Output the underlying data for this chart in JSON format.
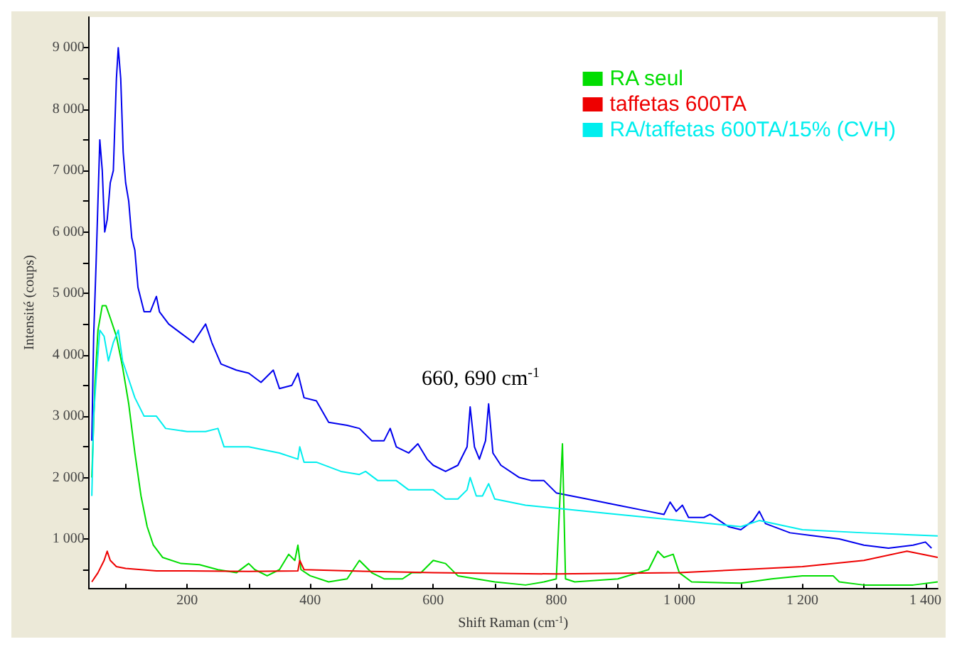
{
  "chart_data": {
    "type": "line",
    "xlabel": "Shift Raman (cm$^{-1}$)",
    "ylabel": "Intensité (coups)",
    "xlim": [
      40,
      1420
    ],
    "ylim": [
      200,
      9500
    ],
    "xticks": [
      {
        "value": 100,
        "label": null
      },
      200,
      {
        "value": 300,
        "label": null
      },
      400,
      {
        "value": 500,
        "label": null
      },
      600,
      {
        "value": 700,
        "label": null
      },
      800,
      {
        "value": 900,
        "label": null
      },
      {
        "value": 1000,
        "label": "1 000"
      },
      {
        "value": 1100,
        "label": null
      },
      {
        "value": 1200,
        "label": "1 200"
      },
      {
        "value": 1300,
        "label": null
      },
      {
        "value": 1400,
        "label": "1 400"
      }
    ],
    "yticks": [
      {
        "value": 500,
        "label": null
      },
      {
        "value": 1000,
        "label": "1 000"
      },
      {
        "value": 1500,
        "label": null
      },
      {
        "value": 2000,
        "label": "2 000"
      },
      {
        "value": 2500,
        "label": null
      },
      {
        "value": 3000,
        "label": "3 000"
      },
      {
        "value": 3500,
        "label": null
      },
      {
        "value": 4000,
        "label": "4 000"
      },
      {
        "value": 4500,
        "label": null
      },
      {
        "value": 5000,
        "label": "5 000"
      },
      {
        "value": 5500,
        "label": null
      },
      {
        "value": 6000,
        "label": "6 000"
      },
      {
        "value": 6500,
        "label": null
      },
      {
        "value": 7000,
        "label": "7 000"
      },
      {
        "value": 7500,
        "label": null
      },
      {
        "value": 8000,
        "label": "8 000"
      },
      {
        "value": 8500,
        "label": null
      },
      {
        "value": 9000,
        "label": "9 000"
      }
    ],
    "grid": false,
    "legend": "top right",
    "marker": "none",
    "line_style": "solid",
    "annotations": [
      "660, 690 cm$^{-1}$"
    ],
    "series": [
      {
        "color": "#0000ee",
        "x": [
          45,
          48,
          52,
          58,
          62,
          66,
          70,
          75,
          80,
          85,
          88,
          92,
          96,
          100,
          105,
          110,
          115,
          120,
          130,
          140,
          150,
          155,
          170,
          190,
          210,
          230,
          240,
          255,
          280,
          300,
          320,
          340,
          350,
          370,
          380,
          390,
          410,
          430,
          460,
          480,
          500,
          520,
          530,
          540,
          560,
          575,
          590,
          600,
          620,
          640,
          655,
          660,
          667,
          675,
          685,
          690,
          697,
          710,
          740,
          760,
          780,
          800,
          850,
          900,
          950,
          975,
          985,
          995,
          1005,
          1015,
          1040,
          1050,
          1080,
          1100,
          1120,
          1130,
          1140,
          1180,
          1220,
          1260,
          1300,
          1340,
          1380,
          1400,
          1410
        ],
        "values": [
          2600,
          4300,
          5500,
          7500,
          7000,
          6000,
          6200,
          6800,
          7000,
          8500,
          9000,
          8500,
          7300,
          6800,
          6500,
          5900,
          5700,
          5100,
          4700,
          4700,
          4950,
          4700,
          4500,
          4350,
          4200,
          4500,
          4200,
          3850,
          3750,
          3700,
          3550,
          3750,
          3450,
          3500,
          3700,
          3300,
          3250,
          2900,
          2850,
          2800,
          2600,
          2600,
          2800,
          2500,
          2400,
          2550,
          2300,
          2200,
          2100,
          2200,
          2500,
          3150,
          2500,
          2300,
          2600,
          3200,
          2400,
          2200,
          2000,
          1950,
          1950,
          1750,
          1650,
          1550,
          1450,
          1400,
          1600,
          1450,
          1550,
          1350,
          1350,
          1400,
          1200,
          1150,
          1300,
          1450,
          1250,
          1100,
          1050,
          1000,
          900,
          850,
          900,
          950,
          850
        ]
      },
      {
        "name": "RA seul",
        "color": "#00dd00",
        "x": [
          45,
          50,
          55,
          62,
          68,
          75,
          85,
          95,
          105,
          115,
          125,
          135,
          145,
          160,
          190,
          220,
          250,
          280,
          300,
          310,
          330,
          350,
          365,
          375,
          380,
          385,
          400,
          430,
          460,
          480,
          500,
          520,
          550,
          565,
          580,
          600,
          620,
          640,
          700,
          750,
          780,
          800,
          810,
          815,
          830,
          900,
          950,
          965,
          975,
          990,
          1000,
          1020,
          1100,
          1150,
          1200,
          1250,
          1260,
          1300,
          1380,
          1420
        ],
        "values": [
          2000,
          3500,
          4400,
          4800,
          4800,
          4600,
          4300,
          3800,
          3200,
          2400,
          1700,
          1200,
          900,
          700,
          600,
          580,
          500,
          450,
          600,
          500,
          400,
          500,
          750,
          650,
          900,
          500,
          400,
          300,
          350,
          650,
          450,
          350,
          350,
          450,
          450,
          650,
          600,
          400,
          300,
          250,
          300,
          350,
          2550,
          350,
          300,
          350,
          500,
          800,
          700,
          750,
          450,
          300,
          280,
          350,
          400,
          400,
          300,
          250,
          250,
          300
        ]
      },
      {
        "name": "taffetas 600TA",
        "color": "#ee0000",
        "x": [
          45,
          55,
          65,
          70,
          75,
          85,
          100,
          150,
          200,
          300,
          380,
          383,
          390,
          500,
          600,
          800,
          1000,
          1100,
          1200,
          1300,
          1370,
          1420
        ],
        "values": [
          300,
          450,
          650,
          800,
          650,
          550,
          520,
          480,
          480,
          470,
          480,
          650,
          500,
          470,
          450,
          430,
          450,
          500,
          550,
          650,
          800,
          700
        ]
      },
      {
        "name": "RA/taffetas 600TA/15% (CVH)",
        "color": "#00eeee",
        "x": [
          45,
          48,
          52,
          58,
          65,
          72,
          80,
          88,
          95,
          105,
          115,
          130,
          150,
          165,
          200,
          230,
          250,
          260,
          300,
          350,
          380,
          383,
          390,
          410,
          450,
          480,
          490,
          510,
          540,
          560,
          600,
          620,
          640,
          655,
          660,
          670,
          680,
          690,
          700,
          750,
          800,
          900,
          1000,
          1100,
          1130,
          1200,
          1300,
          1420
        ],
        "values": [
          1700,
          3000,
          3600,
          4400,
          4300,
          3900,
          4200,
          4400,
          3900,
          3600,
          3300,
          3000,
          3000,
          2800,
          2750,
          2750,
          2800,
          2500,
          2500,
          2400,
          2300,
          2500,
          2250,
          2250,
          2100,
          2050,
          2100,
          1950,
          1950,
          1800,
          1800,
          1650,
          1650,
          1800,
          2000,
          1700,
          1700,
          1900,
          1650,
          1550,
          1500,
          1400,
          1300,
          1200,
          1300,
          1150,
          1100,
          1050
        ]
      }
    ]
  }
}
